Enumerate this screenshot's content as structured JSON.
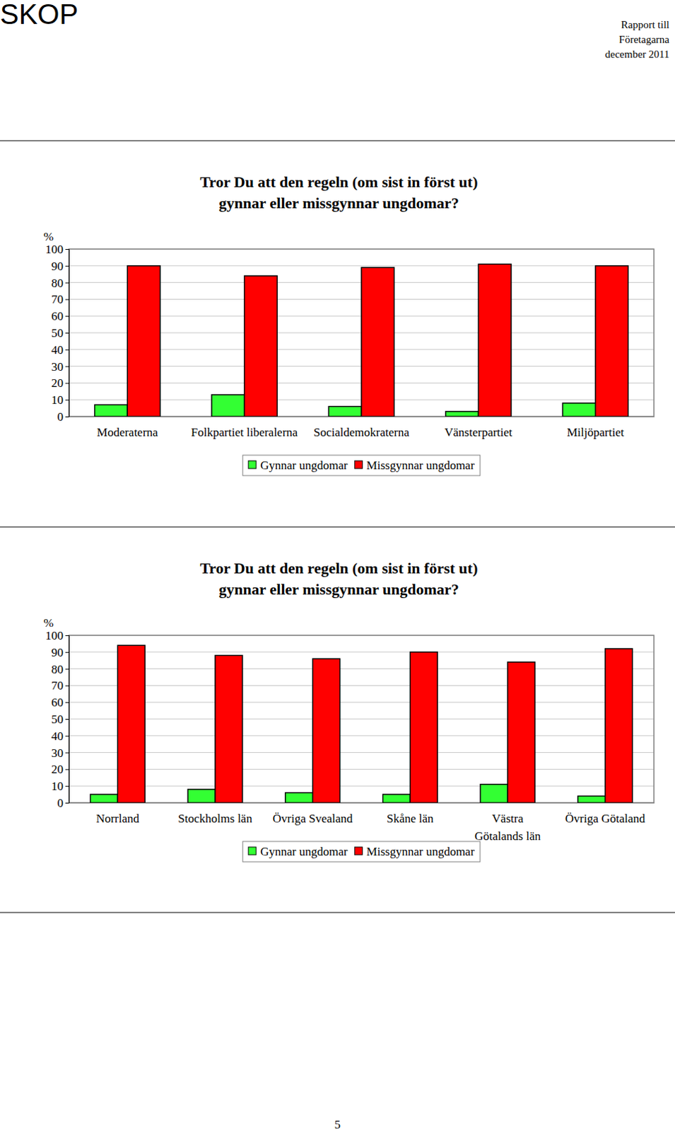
{
  "page": {
    "logo": "SKOP",
    "report_lines": [
      "Rapport till",
      "Företagarna",
      "december 2011"
    ],
    "page_number": "5"
  },
  "chart_data": [
    {
      "type": "bar",
      "title": "Tror Du att den regeln (om sist in först ut) gynnar eller missgynnar ungdomar?",
      "ylabel": "%",
      "categories": [
        "Moderaterna",
        "Folkpartiet liberalerna",
        "Socialdemokraterna",
        "Vänsterpartiet",
        "Miljöpartiet"
      ],
      "series": [
        {
          "name": "Gynnar ungdomar",
          "color": "#33ff33",
          "values": [
            7,
            13,
            6,
            3,
            8
          ]
        },
        {
          "name": "Missgynnar ungdomar",
          "color": "#ff0000",
          "values": [
            90,
            84,
            89,
            91,
            90
          ]
        }
      ],
      "ylim": [
        0,
        100
      ],
      "yticks": [
        0,
        10,
        20,
        30,
        40,
        50,
        60,
        70,
        80,
        90,
        100
      ],
      "grid": true,
      "legend": "bottom"
    },
    {
      "type": "bar",
      "title": "Tror Du att den regeln (om sist in först ut) gynnar eller missgynnar ungdomar?",
      "ylabel": "%",
      "categories": [
        "Norrland",
        "Stockholms län",
        "Övriga Svealand",
        "Skåne län",
        "Västra Götalands län",
        "Övriga Götaland"
      ],
      "series": [
        {
          "name": "Gynnar ungdomar",
          "color": "#33ff33",
          "values": [
            5,
            8,
            6,
            5,
            11,
            4
          ]
        },
        {
          "name": "Missgynnar ungdomar",
          "color": "#ff0000",
          "values": [
            94,
            88,
            86,
            90,
            84,
            92
          ]
        }
      ],
      "ylim": [
        0,
        100
      ],
      "yticks": [
        0,
        10,
        20,
        30,
        40,
        50,
        60,
        70,
        80,
        90,
        100
      ],
      "grid": true,
      "legend": "bottom"
    }
  ]
}
